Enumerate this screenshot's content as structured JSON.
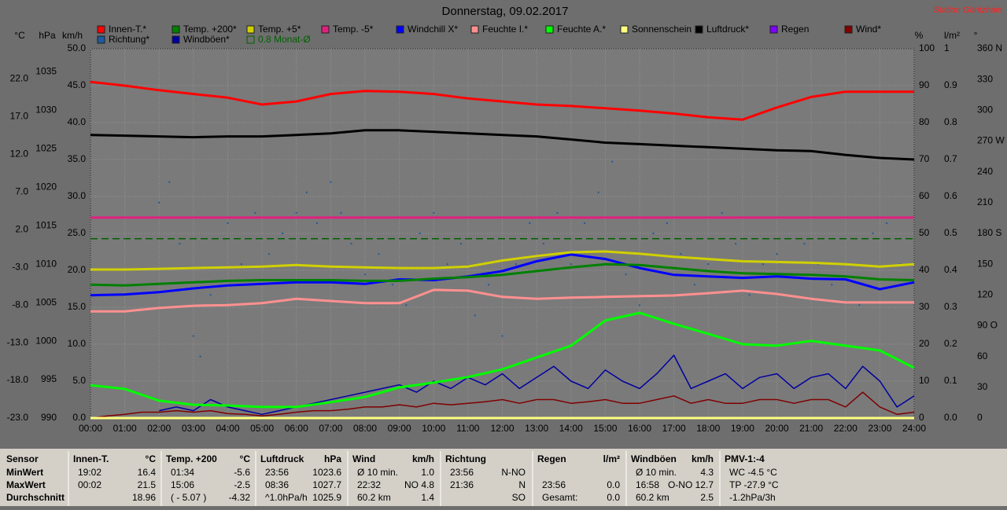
{
  "chart_data": {
    "type": "line",
    "title": "Donnerstag, 09.02.2017",
    "station": "Station Göritzhain",
    "grid": true,
    "xlim": [
      0,
      24
    ],
    "xticks": [
      {
        "value": 0,
        "label": "00:00"
      },
      {
        "value": 1,
        "label": "01:00"
      },
      {
        "value": 2,
        "label": "02:00"
      },
      {
        "value": 3,
        "label": "03:00"
      },
      {
        "value": 4,
        "label": "04:00"
      },
      {
        "value": 5,
        "label": "05:00"
      },
      {
        "value": 6,
        "label": "06:00"
      },
      {
        "value": 7,
        "label": "07:00"
      },
      {
        "value": 8,
        "label": "08:00"
      },
      {
        "value": 9,
        "label": "09:00"
      },
      {
        "value": 10,
        "label": "10:00"
      },
      {
        "value": 11,
        "label": "11:00"
      },
      {
        "value": 12,
        "label": "12:00"
      },
      {
        "value": 13,
        "label": "13:00"
      },
      {
        "value": 14,
        "label": "14:00"
      },
      {
        "value": 15,
        "label": "15:00"
      },
      {
        "value": 16,
        "label": "16:00"
      },
      {
        "value": 17,
        "label": "17:00"
      },
      {
        "value": 18,
        "label": "18:00"
      },
      {
        "value": 19,
        "label": "19:00"
      },
      {
        "value": 20,
        "label": "20:00"
      },
      {
        "value": 21,
        "label": "21:00"
      },
      {
        "value": 22,
        "label": "22:00"
      },
      {
        "value": 23,
        "label": "23:00"
      },
      {
        "value": 24,
        "label": "24:00"
      }
    ],
    "x": [
      0,
      1,
      2,
      3,
      4,
      5,
      6,
      7,
      8,
      9,
      10,
      11,
      12,
      13,
      14,
      15,
      16,
      17,
      18,
      19,
      20,
      21,
      22,
      23,
      24
    ],
    "axes": [
      {
        "id": "temp",
        "label": "°C",
        "lim": [
          -23,
          26
        ],
        "ticks": [
          {
            "value": -23,
            "label": "-23.0"
          },
          {
            "value": -18,
            "label": "-18.0"
          },
          {
            "value": -13,
            "label": "-13.0"
          },
          {
            "value": -8,
            "label": "-8.0"
          },
          {
            "value": -3,
            "label": "-3.0"
          },
          {
            "value": 2,
            "label": "2.0"
          },
          {
            "value": 7,
            "label": "7.0"
          },
          {
            "value": 12,
            "label": "12.0"
          },
          {
            "value": 17,
            "label": "17.0"
          },
          {
            "value": 22,
            "label": "22.0"
          }
        ]
      },
      {
        "id": "hpa",
        "label": "hPa",
        "lim": [
          990,
          1038
        ],
        "ticks": [
          990,
          995,
          1000,
          1005,
          1010,
          1015,
          1020,
          1025,
          1030,
          1035
        ]
      },
      {
        "id": "kmh",
        "label": "km/h",
        "lim": [
          0,
          50
        ],
        "ticks": [
          {
            "value": 0,
            "label": "0.0"
          },
          {
            "value": 5,
            "label": "5.0"
          },
          {
            "value": 10,
            "label": "10.0"
          },
          {
            "value": 15,
            "label": "15.0"
          },
          {
            "value": 20,
            "label": "20.0"
          },
          {
            "value": 25,
            "label": "25.0"
          },
          {
            "value": 30,
            "label": "30.0"
          },
          {
            "value": 35,
            "label": "35.0"
          },
          {
            "value": 40,
            "label": "40.0"
          },
          {
            "value": 45,
            "label": "45.0"
          },
          {
            "value": 50,
            "label": "50.0"
          }
        ]
      },
      {
        "id": "pct",
        "label": "%",
        "lim": [
          0,
          100
        ],
        "ticks": [
          0,
          10,
          20,
          30,
          40,
          50,
          60,
          70,
          80,
          90,
          100
        ]
      },
      {
        "id": "rain",
        "label": "l/m²",
        "lim": [
          0,
          1
        ],
        "ticks": [
          {
            "value": 0,
            "label": "0.0"
          },
          0.1,
          0.2,
          0.3,
          0.4,
          0.5,
          0.6,
          0.7,
          0.8,
          0.9,
          1
        ]
      },
      {
        "id": "deg",
        "label": "°",
        "lim": [
          0,
          360
        ],
        "ticks": [
          0,
          30,
          60,
          {
            "value": 90,
            "label": "90 O"
          },
          120,
          150,
          {
            "value": 180,
            "label": "180 S"
          },
          210,
          240,
          {
            "value": 270,
            "label": "270 W"
          },
          300,
          330,
          {
            "value": 360,
            "label": "360 N"
          }
        ]
      }
    ],
    "series": [
      {
        "name": "Innen-T.*",
        "color": "#ff0000",
        "axis": "temp",
        "values": [
          21.6,
          21.1,
          20.5,
          20.0,
          19.5,
          18.6,
          19.0,
          20.0,
          20.4,
          20.3,
          20.0,
          19.4,
          19.0,
          18.6,
          18.4,
          18.1,
          17.8,
          17.4,
          16.9,
          16.6,
          18.2,
          19.6,
          20.3,
          20.3,
          20.3
        ]
      },
      {
        "name": "Temp. +200*",
        "color": "#008000",
        "axis": "temp",
        "values": [
          -5.3,
          -5.4,
          -5.2,
          -5.0,
          -4.8,
          -4.7,
          -4.7,
          -4.7,
          -4.8,
          -4.8,
          -4.5,
          -4.3,
          -4.0,
          -3.5,
          -3.0,
          -2.6,
          -2.7,
          -3.1,
          -3.5,
          -3.8,
          -3.9,
          -4.0,
          -4.2,
          -4.6,
          -4.7
        ]
      },
      {
        "name": "Temp. +5*",
        "color": "#d0d000",
        "axis": "temp",
        "values": [
          -3.3,
          -3.3,
          -3.2,
          -3.1,
          -3.0,
          -2.9,
          -2.7,
          -2.9,
          -3.0,
          -3.1,
          -3.1,
          -2.9,
          -2.1,
          -1.5,
          -1.0,
          -0.9,
          -1.2,
          -1.6,
          -1.9,
          -2.2,
          -2.3,
          -2.4,
          -2.6,
          -2.9,
          -2.6
        ]
      },
      {
        "name": "Temp. -5*",
        "color": "#e0207f",
        "axis": "temp",
        "values": [
          3.6,
          3.6,
          3.6,
          3.6,
          3.6,
          3.6,
          3.6,
          3.6,
          3.6,
          3.6,
          3.6,
          3.6,
          3.6,
          3.6,
          3.6,
          3.6,
          3.6,
          3.6,
          3.6,
          3.6,
          3.6,
          3.6,
          3.6,
          3.6,
          3.6
        ]
      },
      {
        "name": "Windchill X*",
        "color": "#0000ff",
        "axis": "temp",
        "values": [
          -6.7,
          -6.6,
          -6.3,
          -5.8,
          -5.4,
          -5.2,
          -5.0,
          -5.0,
          -5.2,
          -4.6,
          -4.7,
          -4.2,
          -3.5,
          -2.2,
          -1.3,
          -1.9,
          -3.1,
          -4.0,
          -4.2,
          -4.4,
          -4.2,
          -4.5,
          -4.6,
          -5.9,
          -5.0
        ]
      },
      {
        "name": "Feuchte I.*",
        "color": "#ff9090",
        "axis": "pct",
        "values": [
          28.9,
          28.9,
          29.8,
          30.4,
          30.6,
          31.1,
          32.3,
          31.7,
          31.1,
          31.1,
          34.7,
          34.5,
          32.8,
          32.3,
          32.6,
          32.8,
          33.0,
          33.2,
          33.8,
          34.5,
          33.6,
          32.3,
          31.3,
          31.3,
          31.3
        ]
      },
      {
        "name": "Feuchte A.*",
        "color": "#00ff00",
        "axis": "pct",
        "values": [
          8.9,
          7.9,
          4.7,
          3.6,
          3.4,
          3.0,
          3.0,
          4.3,
          5.7,
          8.3,
          9.6,
          11.1,
          13.2,
          16.4,
          19.6,
          26.4,
          28.5,
          25.5,
          22.8,
          20.0,
          19.6,
          20.9,
          19.6,
          18.3,
          13.6
        ]
      },
      {
        "name": "Sonnenschein",
        "color": "#ffff80",
        "axis": "rain",
        "values": [
          0,
          0,
          0,
          0,
          0,
          0,
          0,
          0,
          0,
          0,
          0,
          0,
          0,
          0,
          0,
          0,
          0,
          0,
          0,
          0,
          0,
          0,
          0,
          0,
          0
        ]
      },
      {
        "name": "Luftdruck*",
        "color": "#000000",
        "axis": "hpa",
        "values": [
          1026.8,
          1026.7,
          1026.6,
          1026.5,
          1026.6,
          1026.6,
          1026.8,
          1027.0,
          1027.4,
          1027.4,
          1027.2,
          1027.0,
          1026.8,
          1026.6,
          1026.2,
          1025.8,
          1025.6,
          1025.4,
          1025.2,
          1025.0,
          1024.8,
          1024.7,
          1024.2,
          1023.8,
          1023.6
        ]
      },
      {
        "name": "Regen",
        "color": "#8000ff",
        "axis": "rain"
      },
      {
        "name": "Wind*",
        "color": "#800000",
        "axis": "kmh",
        "x": [
          0,
          0.5,
          1,
          1.5,
          2,
          2.5,
          3,
          3.5,
          4,
          4.5,
          5,
          5.5,
          6,
          6.5,
          7,
          7.5,
          8,
          8.5,
          9,
          9.5,
          10,
          10.5,
          11,
          11.5,
          12,
          12.5,
          13,
          13.5,
          14,
          14.5,
          15,
          15.5,
          16,
          16.5,
          17,
          17.5,
          18,
          18.5,
          19,
          19.5,
          20,
          20.5,
          21,
          21.5,
          22,
          22.5,
          23,
          23.5,
          24
        ],
        "values": [
          0,
          0.3,
          0.5,
          0.8,
          0.8,
          1,
          0.8,
          1,
          0.6,
          0.5,
          0.3,
          0.5,
          0.8,
          1,
          1,
          1.2,
          1.5,
          1.5,
          1.8,
          1.5,
          2,
          1.8,
          2,
          2.2,
          2.5,
          2,
          2.5,
          2.5,
          2,
          2.2,
          2.5,
          2,
          2,
          2.5,
          3,
          2,
          2.5,
          2,
          2,
          2.5,
          2.5,
          2,
          2.5,
          2.5,
          1.5,
          3.5,
          1.5,
          0.5,
          0.8
        ]
      },
      {
        "name": "Richtung*",
        "color": "#1e5aa0",
        "axis": "deg",
        "style": "scatter",
        "x": [
          2.0,
          2.3,
          2.6,
          3.0,
          3.2,
          3.5,
          4.0,
          4.4,
          4.8,
          5.2,
          5.6,
          6.0,
          6.3,
          6.6,
          7.0,
          7.3,
          7.6,
          8.0,
          8.4,
          8.8,
          9.2,
          9.6,
          10.0,
          10.4,
          10.8,
          11.2,
          11.6,
          12.0,
          12.4,
          12.8,
          13.2,
          13.6,
          14.0,
          14.4,
          14.8,
          15.2,
          15.6,
          16.0,
          16.4,
          16.8,
          17.2,
          17.6,
          18.0,
          18.4,
          18.8,
          19.2,
          19.6,
          20.0,
          20.4,
          20.8,
          21.2,
          21.6,
          22.0,
          22.4,
          22.8,
          23.2,
          23.6
        ],
        "values": [
          210,
          230,
          170,
          80,
          60,
          120,
          190,
          150,
          200,
          160,
          180,
          200,
          220,
          190,
          230,
          200,
          170,
          140,
          160,
          130,
          110,
          180,
          200,
          150,
          170,
          100,
          130,
          80,
          150,
          190,
          170,
          200,
          150,
          190,
          220,
          250,
          140,
          110,
          180,
          190,
          160,
          130,
          150,
          200,
          170,
          120,
          150,
          160,
          140,
          170,
          150,
          130,
          150,
          110,
          180,
          190,
          150
        ]
      },
      {
        "name": "Windböen*",
        "color": "#0000a0",
        "axis": "kmh",
        "x": [
          0,
          0.5,
          1,
          1.5,
          2,
          2.5,
          3,
          3.5,
          4,
          4.5,
          5,
          5.5,
          6,
          6.5,
          7,
          7.5,
          8,
          8.5,
          9,
          9.5,
          10,
          10.5,
          11,
          11.5,
          12,
          12.5,
          13,
          13.5,
          14,
          14.5,
          15,
          15.5,
          16,
          16.5,
          17,
          17.5,
          18,
          18.5,
          19,
          19.5,
          20,
          20.5,
          21,
          21.5,
          22,
          22.5,
          23,
          23.5,
          24
        ],
        "values": [
          null,
          null,
          null,
          null,
          1,
          1.5,
          1,
          2.5,
          1.5,
          1,
          0.5,
          1,
          1.5,
          2,
          2.5,
          3,
          3.5,
          4,
          4.5,
          3.5,
          5,
          4,
          5.5,
          4.5,
          6,
          4,
          5.5,
          7,
          5,
          4,
          6.5,
          5,
          4,
          6,
          8.5,
          4,
          5,
          6,
          4,
          5.5,
          6,
          4,
          5.5,
          6,
          4,
          7,
          5,
          1.5,
          3
        ]
      }
    ],
    "reference_line": {
      "name": "0.8 Monat-Ø",
      "color": "#006000",
      "axis": "temp",
      "value": 0.8
    },
    "table": {
      "row_labels": [
        "Sensor",
        "MinWert",
        "MaxWert",
        "Durchschnitt"
      ],
      "columns": [
        {
          "header": {
            "l": "Innen-T.",
            "r": "°C"
          },
          "rows": [
            {
              "l": "19:02",
              "r": "16.4"
            },
            {
              "l": "00:02",
              "r": "21.5"
            },
            {
              "r": "18.96"
            }
          ]
        },
        {
          "header": {
            "l": "Temp. +200",
            "r": "°C"
          },
          "rows": [
            {
              "l": "01:34",
              "r": "-5.6"
            },
            {
              "l": "15:06",
              "r": "-2.5"
            },
            {
              "l": "( - 5.07 )",
              "r": "-4.32"
            }
          ]
        },
        {
          "header": {
            "l": "Luftdruck",
            "r": "hPa"
          },
          "rows": [
            {
              "l": "23:56",
              "r": "1023.6"
            },
            {
              "l": "08:36",
              "r": "1027.7"
            },
            {
              "l": "^1.0hPa/h",
              "r": "1025.9"
            }
          ]
        },
        {
          "header": {
            "l": "Wind",
            "r": "km/h"
          },
          "rows": [
            {
              "l": "Ø 10 min.",
              "r": "1.0"
            },
            {
              "l": "22:32",
              "r": "NO 4.8"
            },
            {
              "l": "60.2 km",
              "r": "1.4"
            }
          ]
        },
        {
          "header": {
            "l": "Richtung"
          },
          "rows": [
            {
              "l": "23:56",
              "r": "N-NO"
            },
            {
              "l": "21:36",
              "r": "N"
            },
            {
              "r": "SO"
            }
          ]
        },
        {
          "header": {
            "l": "Regen",
            "r": "l/m²"
          },
          "rows": [
            {},
            {
              "l": "23:56",
              "r": "0.0"
            },
            {
              "l": "Gesamt:",
              "r": "0.0"
            }
          ]
        },
        {
          "header": {
            "l": "Windböen",
            "r": "km/h"
          },
          "rows": [
            {
              "l": "Ø 10 min.",
              "r": "4.3"
            },
            {
              "l": "16:58",
              "r": "O-NO 12.7"
            },
            {
              "l": "60.2 km",
              "r": "2.5"
            }
          ]
        },
        {
          "header": {
            "l": "PMV-1:-4"
          },
          "rows": [
            {
              "l": "WC -4.5 °C"
            },
            {
              "l": "TP -27.9 °C"
            },
            {
              "l": "-1.2hPa/3h"
            }
          ]
        }
      ]
    }
  }
}
